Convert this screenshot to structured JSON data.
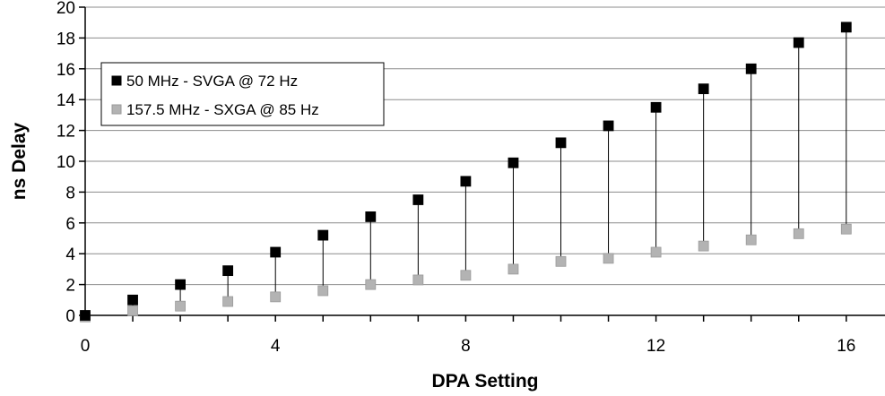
{
  "chart_data": {
    "type": "scatter",
    "xlabel": "DPA Setting",
    "ylabel": "ns Delay",
    "xlim": [
      0,
      17
    ],
    "ylim": [
      0,
      20
    ],
    "x_ticks": [
      "0",
      "4",
      "8",
      "12",
      "16"
    ],
    "y_ticks": [
      "0",
      "2",
      "4",
      "6",
      "8",
      "10",
      "12",
      "14",
      "16",
      "18",
      "20"
    ],
    "grid": "horizontal",
    "legend_position": "upper-left",
    "drop_lines": true,
    "series": [
      {
        "name": "50 MHz - SVGA @ 72 Hz",
        "color": "#000000",
        "marker": "square",
        "x": [
          0,
          1,
          2,
          3,
          4,
          5,
          6,
          7,
          8,
          9,
          10,
          11,
          12,
          13,
          14,
          15,
          16
        ],
        "y": [
          0.0,
          1.0,
          2.0,
          2.9,
          4.1,
          5.2,
          6.4,
          7.5,
          8.7,
          9.9,
          11.2,
          12.3,
          13.5,
          14.7,
          16.0,
          17.7,
          18.7
        ]
      },
      {
        "name": "157.5 MHz - SXGA @ 85 Hz",
        "color": "#b3b3b3",
        "marker": "square",
        "x": [
          0,
          1,
          2,
          3,
          4,
          5,
          6,
          7,
          8,
          9,
          10,
          11,
          12,
          13,
          14,
          15,
          16
        ],
        "y": [
          -0.1,
          0.3,
          0.6,
          0.9,
          1.2,
          1.6,
          2.0,
          2.3,
          2.6,
          3.0,
          3.5,
          3.7,
          4.1,
          4.5,
          4.9,
          5.3,
          5.6
        ]
      }
    ]
  }
}
